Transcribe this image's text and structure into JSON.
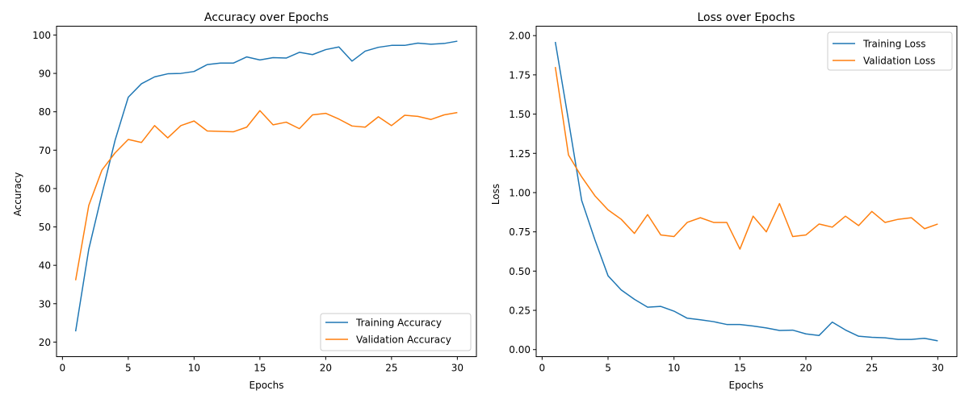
{
  "chart_data": [
    {
      "type": "line",
      "title": "Accuracy over Epochs",
      "xlabel": "Epochs",
      "ylabel": "Accuracy",
      "xlim": [
        -0.45,
        31.45
      ],
      "ylim": [
        16.2,
        102.3
      ],
      "xticks": [
        0,
        5,
        10,
        15,
        20,
        25,
        30
      ],
      "yticks": [
        20,
        30,
        40,
        50,
        60,
        70,
        80,
        90,
        100
      ],
      "ytick_labels": [
        "20",
        "30",
        "40",
        "50",
        "60",
        "70",
        "80",
        "90",
        "100"
      ],
      "grid": false,
      "legend_position": "lower-right",
      "x": [
        1,
        2,
        3,
        4,
        5,
        6,
        7,
        8,
        9,
        10,
        11,
        12,
        13,
        14,
        15,
        16,
        17,
        18,
        19,
        20,
        21,
        22,
        23,
        24,
        25,
        26,
        27,
        28,
        29,
        30
      ],
      "series": [
        {
          "name": "Training Accuracy",
          "color": "#1f77b4",
          "values": [
            22.8,
            44.2,
            58.6,
            72.6,
            83.8,
            87.3,
            89.1,
            89.9,
            90.0,
            90.5,
            92.3,
            92.7,
            92.7,
            94.3,
            93.5,
            94.1,
            94.0,
            95.5,
            94.9,
            96.2,
            96.9,
            93.2,
            95.8,
            96.8,
            97.3,
            97.3,
            97.9,
            97.6,
            97.8,
            98.4
          ]
        },
        {
          "name": "Validation Accuracy",
          "color": "#ff7f0e",
          "values": [
            36.1,
            55.6,
            64.8,
            69.3,
            72.8,
            72.0,
            76.4,
            73.2,
            76.4,
            77.6,
            75.0,
            74.9,
            74.8,
            76.0,
            80.3,
            76.6,
            77.3,
            75.6,
            79.2,
            79.6,
            78.1,
            76.3,
            76.0,
            78.7,
            76.4,
            79.1,
            78.8,
            78.0,
            79.2,
            79.8
          ]
        }
      ]
    },
    {
      "type": "line",
      "title": "Loss over Epochs",
      "xlabel": "Epochs",
      "ylabel": "Loss",
      "xlim": [
        -0.45,
        31.45
      ],
      "ylim": [
        -0.045,
        2.06
      ],
      "xticks": [
        0,
        5,
        10,
        15,
        20,
        25,
        30
      ],
      "yticks": [
        0,
        0.25,
        0.5,
        0.75,
        1.0,
        1.25,
        1.5,
        1.75,
        2.0
      ],
      "ytick_labels": [
        "0.00",
        "0.25",
        "0.50",
        "0.75",
        "1.00",
        "1.25",
        "1.50",
        "1.75",
        "2.00"
      ],
      "grid": false,
      "legend_position": "upper-right",
      "x": [
        1,
        2,
        3,
        4,
        5,
        6,
        7,
        8,
        9,
        10,
        11,
        12,
        13,
        14,
        15,
        16,
        17,
        18,
        19,
        20,
        21,
        22,
        23,
        24,
        25,
        26,
        27,
        28,
        29,
        30
      ],
      "series": [
        {
          "name": "Training Loss",
          "color": "#1f77b4",
          "values": [
            1.96,
            1.46,
            0.95,
            0.7,
            0.47,
            0.38,
            0.32,
            0.27,
            0.275,
            0.245,
            0.2,
            0.19,
            0.178,
            0.16,
            0.16,
            0.15,
            0.138,
            0.122,
            0.124,
            0.1,
            0.09,
            0.175,
            0.125,
            0.085,
            0.078,
            0.075,
            0.065,
            0.065,
            0.072,
            0.056
          ]
        },
        {
          "name": "Validation Loss",
          "color": "#ff7f0e",
          "values": [
            1.8,
            1.24,
            1.1,
            0.98,
            0.89,
            0.83,
            0.74,
            0.86,
            0.73,
            0.72,
            0.81,
            0.84,
            0.81,
            0.81,
            0.64,
            0.85,
            0.75,
            0.93,
            0.72,
            0.73,
            0.8,
            0.78,
            0.85,
            0.79,
            0.88,
            0.81,
            0.83,
            0.84,
            0.77,
            0.8
          ]
        }
      ]
    }
  ]
}
